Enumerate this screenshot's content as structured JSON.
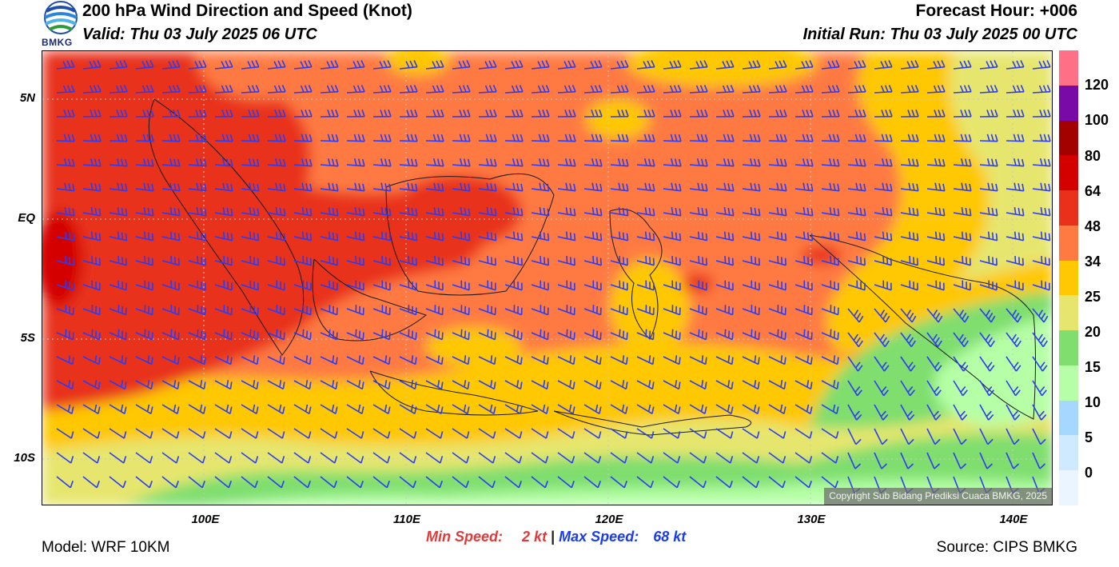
{
  "header": {
    "title": "200 hPa Wind Direction and Speed (Knot)",
    "valid": "Valid: Thu 03 July 2025 06 UTC",
    "forecast_hour": "Forecast Hour: +006",
    "initial_run": "Initial Run: Thu 03 July 2025 00 UTC",
    "logo_text": "BMKG"
  },
  "map": {
    "lat_labels": [
      "5N",
      "EQ",
      "5S",
      "10S"
    ],
    "lon_labels": [
      "100E",
      "110E",
      "120E",
      "130E",
      "140E"
    ],
    "copyright": "Copyright Sub Bidang Prediksi Cuaca BMKG, 2025",
    "barb_color": "#2b3cf2"
  },
  "colorbar": {
    "labels": [
      "120",
      "100",
      "80",
      "64",
      "48",
      "34",
      "25",
      "20",
      "15",
      "10",
      "5",
      "0"
    ],
    "colors": [
      "#ff6f86",
      "#7a0aa8",
      "#a30000",
      "#d40000",
      "#e8301a",
      "#ff7a42",
      "#ffc800",
      "#e6e66e",
      "#7fde6e",
      "#b6ffa6",
      "#a6d8ff",
      "#cfeaff",
      "#eaf5ff"
    ]
  },
  "footer": {
    "min_label": "Min Speed:",
    "min_value": "2 kt",
    "separator": "|",
    "max_label": "Max Speed:",
    "max_value": "68 kt",
    "model": "Model: WRF 10KM",
    "source": "Source: CIPS BMKG"
  }
}
